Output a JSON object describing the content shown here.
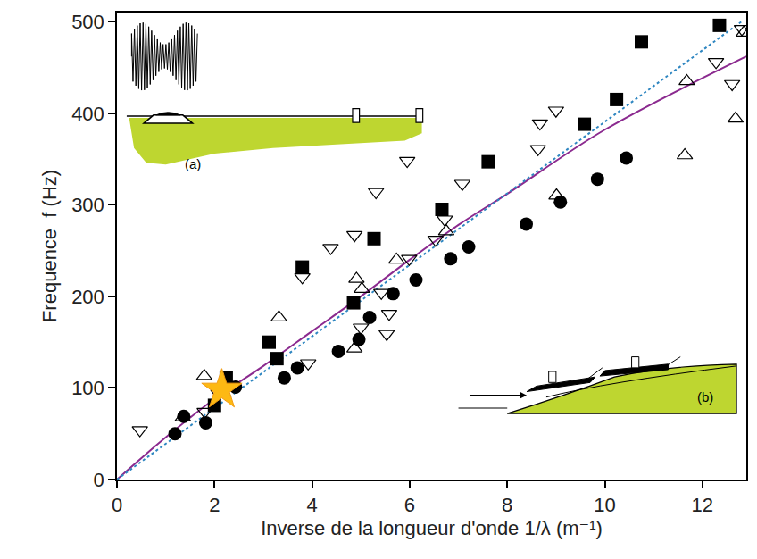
{
  "chart_data": {
    "type": "scatter",
    "xlabel": "Inverse de la longueur d'onde 1/λ (m⁻¹)",
    "ylabel": "Frequence  f (Hz)",
    "xlim": [
      0,
      12.9
    ],
    "ylim": [
      0,
      510
    ],
    "xticks": [
      0,
      2,
      4,
      6,
      8,
      10,
      12
    ],
    "yticks": [
      0,
      100,
      200,
      300,
      400,
      500
    ],
    "grid": false,
    "legend": false,
    "annotations": [
      "(a)",
      "(b)"
    ],
    "series": [
      {
        "type": "scatter",
        "marker": "square",
        "color": "#000000",
        "x": [
          2.0,
          2.24,
          3.12,
          3.28,
          3.8,
          4.85,
          5.27,
          6.66,
          7.61,
          9.58,
          10.24,
          10.75,
          12.35
        ],
        "values": [
          81,
          111,
          150,
          132,
          232,
          193,
          263,
          295,
          347,
          388,
          415,
          478,
          496
        ]
      },
      {
        "type": "scatter",
        "marker": "circle",
        "color": "#000000",
        "x": [
          1.19,
          1.37,
          1.82,
          2.43,
          3.43,
          3.7,
          4.54,
          4.96,
          5.18,
          5.66,
          6.13,
          6.84,
          7.21,
          8.39,
          9.09,
          9.85,
          10.44
        ],
        "values": [
          50,
          69,
          62,
          101,
          111,
          122,
          140,
          153,
          177,
          203,
          218,
          241,
          254,
          279,
          303,
          328,
          351
        ]
      },
      {
        "type": "scatter",
        "marker": "triangle-up-open",
        "color": "#000000",
        "x": [
          1.35,
          1.79,
          3.32,
          4.87,
          4.91,
          5.02,
          5.73,
          6.75,
          9.01,
          11.64,
          11.68,
          12.68,
          12.85
        ],
        "values": [
          68,
          113,
          177,
          143,
          219,
          208,
          240,
          271,
          310,
          354,
          435,
          394,
          488
        ]
      },
      {
        "type": "scatter",
        "marker": "triangle-down-open",
        "color": "#000000",
        "x": [
          0.47,
          1.8,
          2.08,
          3.8,
          3.92,
          4.38,
          4.87,
          5.0,
          5.31,
          5.42,
          5.53,
          5.58,
          5.95,
          5.99,
          6.53,
          6.72,
          7.08,
          8.63,
          8.67,
          9.0,
          12.28,
          12.61,
          12.81
        ],
        "values": [
          54,
          74,
          94,
          221,
          127,
          253,
          267,
          166,
          314,
          204,
          159,
          181,
          348,
          241,
          262,
          284,
          323,
          361,
          389,
          403,
          456,
          432,
          492
        ]
      },
      {
        "type": "line",
        "line_style": "solid",
        "color": "#8B2A8F",
        "x": [
          0,
          1,
          2,
          3,
          4,
          5,
          6,
          7,
          8,
          10,
          12.9
        ],
        "values": [
          0,
          46,
          88,
          124,
          162,
          200,
          240,
          278,
          312,
          382,
          462
        ]
      },
      {
        "type": "line",
        "line_style": "dotted",
        "color": "#2E86C1",
        "x": [
          0,
          12.8
        ],
        "values": [
          0,
          500
        ]
      },
      {
        "type": "scatter",
        "marker": "star",
        "color": "#FDB913",
        "x": [
          2.15
        ],
        "values": [
          98
        ]
      }
    ]
  }
}
